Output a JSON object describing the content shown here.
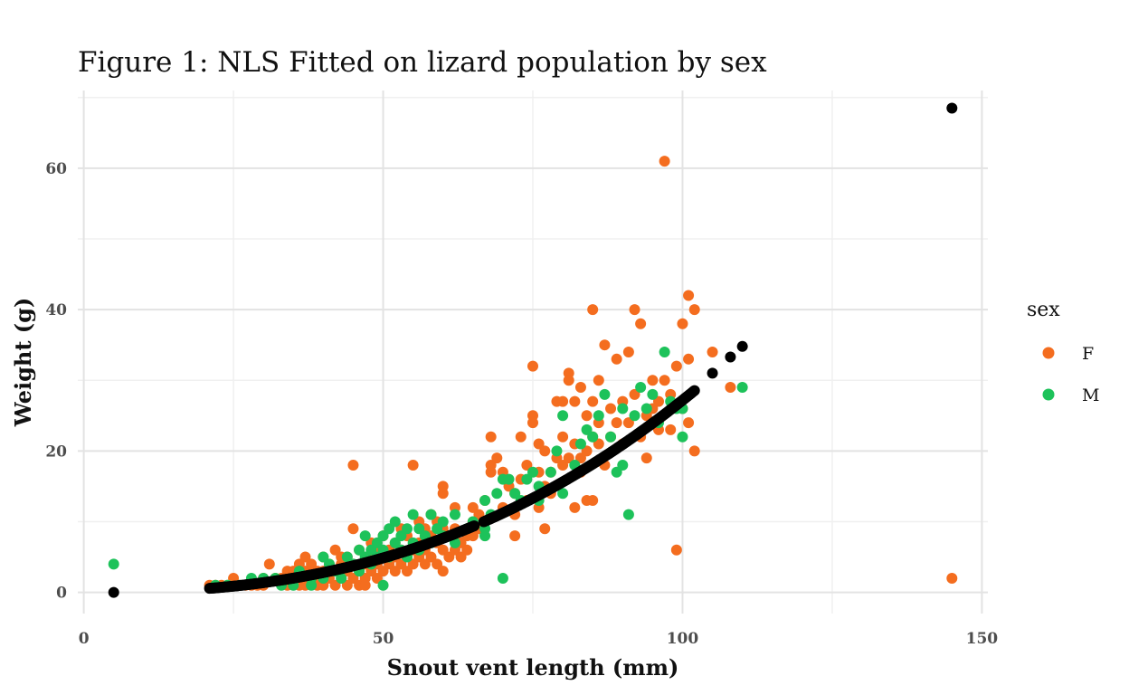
{
  "chart_data": {
    "type": "scatter",
    "title": "Figure 1: NLS Fitted on lizard population by sex",
    "xlabel": "Snout vent length (mm)",
    "ylabel": "Weight (g)",
    "xlim": [
      -1,
      151
    ],
    "ylim": [
      -3,
      71
    ],
    "x_ticks": [
      0,
      50,
      100,
      150
    ],
    "y_ticks": [
      0,
      20,
      40,
      60
    ],
    "grid": true,
    "legend": {
      "title": "sex",
      "placement": "right",
      "entries": [
        {
          "label": "F",
          "color": "#f46d1f"
        },
        {
          "label": "M",
          "color": "#1dc25a"
        }
      ]
    },
    "series": [
      {
        "name": "F",
        "color": "#f46d1f",
        "points": [
          [
            21,
            1
          ],
          [
            22,
            1
          ],
          [
            23,
            1
          ],
          [
            24,
            1
          ],
          [
            25,
            1
          ],
          [
            25,
            2
          ],
          [
            26,
            1
          ],
          [
            27,
            1
          ],
          [
            28,
            1
          ],
          [
            29,
            1
          ],
          [
            30,
            1
          ],
          [
            30,
            2
          ],
          [
            31,
            4
          ],
          [
            32,
            2
          ],
          [
            33,
            2
          ],
          [
            34,
            1
          ],
          [
            34,
            3
          ],
          [
            35,
            2
          ],
          [
            35,
            3
          ],
          [
            36,
            1
          ],
          [
            36,
            2
          ],
          [
            36,
            4
          ],
          [
            37,
            1
          ],
          [
            37,
            3
          ],
          [
            37,
            5
          ],
          [
            38,
            2
          ],
          [
            38,
            4
          ],
          [
            39,
            1
          ],
          [
            39,
            2
          ],
          [
            39,
            3
          ],
          [
            40,
            1
          ],
          [
            40,
            3
          ],
          [
            40,
            5
          ],
          [
            41,
            2
          ],
          [
            41,
            4
          ],
          [
            42,
            1
          ],
          [
            42,
            3
          ],
          [
            42,
            6
          ],
          [
            43,
            2
          ],
          [
            43,
            4
          ],
          [
            43,
            5
          ],
          [
            44,
            1
          ],
          [
            44,
            3
          ],
          [
            44,
            5
          ],
          [
            45,
            2
          ],
          [
            45,
            4
          ],
          [
            45,
            9
          ],
          [
            45,
            18
          ],
          [
            46,
            1
          ],
          [
            46,
            3
          ],
          [
            46,
            6
          ],
          [
            47,
            2
          ],
          [
            47,
            4
          ],
          [
            47,
            1
          ],
          [
            48,
            3
          ],
          [
            48,
            5
          ],
          [
            48,
            7
          ],
          [
            49,
            2
          ],
          [
            49,
            4
          ],
          [
            49,
            6
          ],
          [
            50,
            3
          ],
          [
            50,
            5
          ],
          [
            50,
            8
          ],
          [
            51,
            4
          ],
          [
            51,
            6
          ],
          [
            52,
            3
          ],
          [
            52,
            5
          ],
          [
            52,
            7
          ],
          [
            53,
            4
          ],
          [
            53,
            6
          ],
          [
            53,
            9
          ],
          [
            54,
            3
          ],
          [
            54,
            5
          ],
          [
            54,
            8
          ],
          [
            55,
            4
          ],
          [
            55,
            6
          ],
          [
            55,
            18
          ],
          [
            56,
            5
          ],
          [
            56,
            7
          ],
          [
            56,
            10
          ],
          [
            57,
            4
          ],
          [
            57,
            6
          ],
          [
            57,
            9
          ],
          [
            58,
            5
          ],
          [
            58,
            8
          ],
          [
            58,
            11
          ],
          [
            59,
            4
          ],
          [
            59,
            7
          ],
          [
            59,
            10
          ],
          [
            60,
            3
          ],
          [
            60,
            6
          ],
          [
            60,
            9
          ],
          [
            60,
            14
          ],
          [
            60,
            15
          ],
          [
            61,
            5
          ],
          [
            61,
            8
          ],
          [
            62,
            6
          ],
          [
            62,
            9
          ],
          [
            62,
            12
          ],
          [
            63,
            5
          ],
          [
            63,
            7
          ],
          [
            64,
            6
          ],
          [
            64,
            8
          ],
          [
            65,
            8
          ],
          [
            65,
            10
          ],
          [
            65,
            12
          ],
          [
            66,
            9
          ],
          [
            66,
            11
          ],
          [
            67,
            10
          ],
          [
            67,
            13
          ],
          [
            68,
            17
          ],
          [
            68,
            18
          ],
          [
            68,
            22
          ],
          [
            69,
            19
          ],
          [
            70,
            12
          ],
          [
            70,
            17
          ],
          [
            71,
            15
          ],
          [
            72,
            8
          ],
          [
            72,
            11
          ],
          [
            72,
            14
          ],
          [
            73,
            22
          ],
          [
            73,
            16
          ],
          [
            74,
            13
          ],
          [
            74,
            18
          ],
          [
            75,
            24
          ],
          [
            75,
            25
          ],
          [
            75,
            32
          ],
          [
            76,
            21
          ],
          [
            76,
            17
          ],
          [
            76,
            12
          ],
          [
            77,
            20
          ],
          [
            77,
            9
          ],
          [
            77,
            15
          ],
          [
            78,
            17
          ],
          [
            78,
            14
          ],
          [
            79,
            19
          ],
          [
            79,
            27
          ],
          [
            80,
            18
          ],
          [
            80,
            22
          ],
          [
            80,
            27
          ],
          [
            81,
            31
          ],
          [
            81,
            30
          ],
          [
            81,
            19
          ],
          [
            82,
            21
          ],
          [
            82,
            12
          ],
          [
            82,
            27
          ],
          [
            83,
            29
          ],
          [
            83,
            17
          ],
          [
            83,
            19
          ],
          [
            84,
            13
          ],
          [
            84,
            20
          ],
          [
            84,
            25
          ],
          [
            85,
            13
          ],
          [
            85,
            22
          ],
          [
            85,
            40
          ],
          [
            85,
            27
          ],
          [
            86,
            21
          ],
          [
            86,
            24
          ],
          [
            86,
            30
          ],
          [
            87,
            35
          ],
          [
            87,
            18
          ],
          [
            88,
            22
          ],
          [
            88,
            26
          ],
          [
            89,
            33
          ],
          [
            89,
            24
          ],
          [
            90,
            27
          ],
          [
            90,
            21
          ],
          [
            91,
            34
          ],
          [
            91,
            24
          ],
          [
            92,
            28
          ],
          [
            92,
            40
          ],
          [
            93,
            38
          ],
          [
            93,
            22
          ],
          [
            94,
            19
          ],
          [
            94,
            25
          ],
          [
            95,
            26
          ],
          [
            95,
            30
          ],
          [
            96,
            27
          ],
          [
            96,
            23
          ],
          [
            97,
            61
          ],
          [
            97,
            30
          ],
          [
            98,
            28
          ],
          [
            98,
            23
          ],
          [
            99,
            6
          ],
          [
            99,
            32
          ],
          [
            100,
            38
          ],
          [
            100,
            26
          ],
          [
            101,
            42
          ],
          [
            101,
            33
          ],
          [
            101,
            24
          ],
          [
            102,
            40
          ],
          [
            102,
            20
          ],
          [
            105,
            34
          ],
          [
            108,
            29
          ],
          [
            145,
            2
          ]
        ]
      },
      {
        "name": "M",
        "color": "#1dc25a",
        "points": [
          [
            5,
            4
          ],
          [
            22,
            1
          ],
          [
            24,
            1
          ],
          [
            26,
            1
          ],
          [
            28,
            2
          ],
          [
            30,
            2
          ],
          [
            32,
            2
          ],
          [
            33,
            1
          ],
          [
            35,
            1
          ],
          [
            36,
            3
          ],
          [
            38,
            2
          ],
          [
            38,
            1
          ],
          [
            40,
            2
          ],
          [
            40,
            5
          ],
          [
            41,
            4
          ],
          [
            42,
            3
          ],
          [
            43,
            2
          ],
          [
            44,
            5
          ],
          [
            45,
            4
          ],
          [
            46,
            6
          ],
          [
            46,
            3
          ],
          [
            47,
            5
          ],
          [
            47,
            8
          ],
          [
            48,
            4
          ],
          [
            48,
            6
          ],
          [
            49,
            5
          ],
          [
            49,
            7
          ],
          [
            50,
            1
          ],
          [
            50,
            8
          ],
          [
            50,
            6
          ],
          [
            51,
            9
          ],
          [
            51,
            5
          ],
          [
            52,
            10
          ],
          [
            52,
            7
          ],
          [
            53,
            6
          ],
          [
            53,
            8
          ],
          [
            54,
            5
          ],
          [
            54,
            9
          ],
          [
            55,
            7
          ],
          [
            55,
            11
          ],
          [
            56,
            6
          ],
          [
            56,
            9
          ],
          [
            57,
            8
          ],
          [
            58,
            11
          ],
          [
            58,
            7
          ],
          [
            59,
            9
          ],
          [
            60,
            8
          ],
          [
            60,
            10
          ],
          [
            62,
            7
          ],
          [
            62,
            11
          ],
          [
            64,
            9
          ],
          [
            65,
            10
          ],
          [
            67,
            9
          ],
          [
            67,
            13
          ],
          [
            67,
            8
          ],
          [
            68,
            11
          ],
          [
            69,
            14
          ],
          [
            70,
            2
          ],
          [
            70,
            16
          ],
          [
            71,
            16
          ],
          [
            72,
            14
          ],
          [
            73,
            13
          ],
          [
            74,
            16
          ],
          [
            75,
            17
          ],
          [
            76,
            13
          ],
          [
            76,
            15
          ],
          [
            78,
            17
          ],
          [
            79,
            20
          ],
          [
            80,
            14
          ],
          [
            80,
            25
          ],
          [
            82,
            18
          ],
          [
            83,
            21
          ],
          [
            84,
            23
          ],
          [
            85,
            22
          ],
          [
            86,
            25
          ],
          [
            87,
            28
          ],
          [
            88,
            22
          ],
          [
            89,
            17
          ],
          [
            90,
            26
          ],
          [
            90,
            18
          ],
          [
            91,
            11
          ],
          [
            92,
            25
          ],
          [
            93,
            29
          ],
          [
            94,
            26
          ],
          [
            95,
            28
          ],
          [
            96,
            24
          ],
          [
            97,
            34
          ],
          [
            98,
            27
          ],
          [
            99,
            26
          ],
          [
            100,
            22
          ],
          [
            100,
            26
          ],
          [
            110,
            29
          ]
        ]
      },
      {
        "name": "",
        "color": "#000000",
        "fitted": {
          "a": 0.000298,
          "b": 2.48,
          "x_from": 21,
          "x_to": 102,
          "step": 0.2,
          "gap_from": 65.3,
          "gap_to": 66.8
        },
        "points": [
          [
            5,
            0
          ],
          [
            105,
            31
          ],
          [
            108,
            33.3
          ],
          [
            110,
            34.8
          ],
          [
            145,
            68.5
          ]
        ]
      }
    ]
  }
}
